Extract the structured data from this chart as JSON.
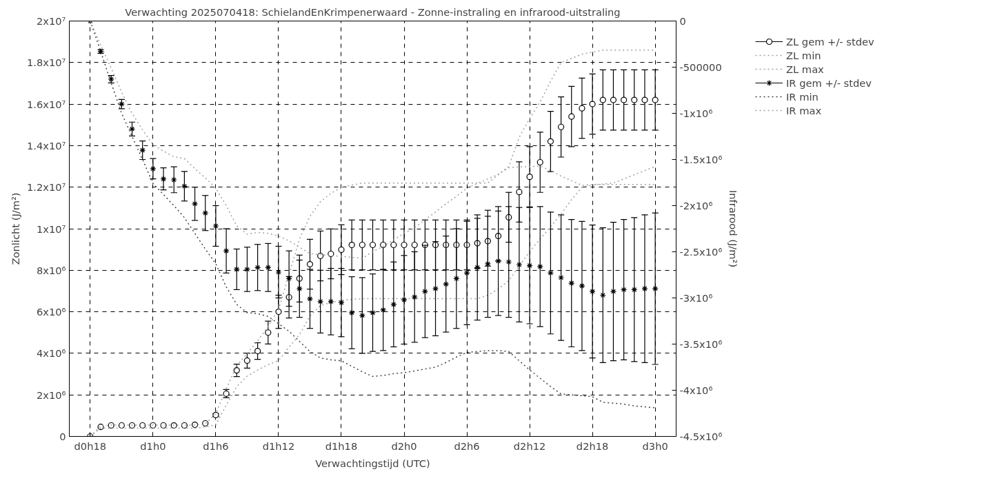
{
  "chart_data": {
    "type": "scatter",
    "title": "Verwachting 2025070418: SchielandEnKrimpenerwaard - Zonne-instraling en infrarood-uitstraling",
    "xlabel": "Verwachtingstijd (UTC)",
    "ylabel": "Zonlicht (J/m²)",
    "y2label": "Infrarood (J/m²)",
    "categories": [
      "d0h18",
      null,
      null,
      null,
      null,
      null,
      "d1h0",
      null,
      null,
      null,
      null,
      null,
      "d1h6",
      null,
      null,
      null,
      null,
      null,
      "d1h12",
      null,
      null,
      null,
      null,
      null,
      "d1h18",
      null,
      null,
      null,
      null,
      null,
      "d2h0",
      null,
      null,
      null,
      null,
      null,
      "d2h6",
      null,
      null,
      null,
      null,
      null,
      "d2h12",
      null,
      null,
      null,
      null,
      null,
      "d2h18",
      null,
      null,
      null,
      null,
      null,
      "d3h0"
    ],
    "ylim": [
      0,
      20000000
    ],
    "yticks": [
      {
        "value": 0,
        "label": "0"
      },
      {
        "value": 2000000,
        "label": "2x10⁶"
      },
      {
        "value": 4000000,
        "label": "4x10⁶"
      },
      {
        "value": 6000000,
        "label": "6x10⁶"
      },
      {
        "value": 8000000,
        "label": "8x10⁶"
      },
      {
        "value": 10000000,
        "label": "1x10⁷"
      },
      {
        "value": 12000000,
        "label": "1.2x10⁷"
      },
      {
        "value": 14000000,
        "label": "1.4x10⁷"
      },
      {
        "value": 16000000,
        "label": "1.6x10⁷"
      },
      {
        "value": 18000000,
        "label": "1.8x10⁷"
      },
      {
        "value": 20000000,
        "label": "2x10⁷"
      }
    ],
    "y2lim": [
      -4500000,
      0
    ],
    "y2ticks": [
      {
        "value": 0,
        "label": "0"
      },
      {
        "value": -500000,
        "label": "-500000"
      },
      {
        "value": -1000000,
        "label": "-1x10⁶"
      },
      {
        "value": -1500000,
        "label": "-1.5x10⁶"
      },
      {
        "value": -2000000,
        "label": "-2x10⁶"
      },
      {
        "value": -2500000,
        "label": "-2.5x10⁶"
      },
      {
        "value": -3000000,
        "label": "-3x10⁶"
      },
      {
        "value": -3500000,
        "label": "-3.5x10⁶"
      },
      {
        "value": -4000000,
        "label": "-4x10⁶"
      },
      {
        "value": -4500000,
        "label": "-4.5x10⁶"
      }
    ],
    "grid": true,
    "legend": "top right",
    "series": [
      {
        "name": "ZL gem +/- stdev",
        "marker": "circle",
        "color": "#000000",
        "values": [
          0,
          460000,
          530000,
          530000,
          530000,
          530000,
          530000,
          530000,
          530000,
          530000,
          560000,
          630000,
          1030000,
          2060000,
          3180000,
          3650000,
          4110000,
          5000000,
          6000000,
          6700000,
          7600000,
          8290000,
          8690000,
          8790000,
          8990000,
          9220000,
          9220000,
          9220000,
          9220000,
          9220000,
          9220000,
          9220000,
          9220000,
          9220000,
          9220000,
          9220000,
          9220000,
          9300000,
          9400000,
          9650000,
          10550000,
          11770000,
          12500000,
          13200000,
          14200000,
          14900000,
          15400000,
          15800000,
          16000000,
          16200000,
          16200000,
          16200000,
          16200000,
          16200000,
          16200000
        ],
        "errors": [
          null,
          null,
          null,
          null,
          null,
          null,
          null,
          null,
          null,
          null,
          null,
          null,
          70000,
          200000,
          300000,
          360000,
          400000,
          550000,
          800000,
          1000000,
          1130000,
          1200000,
          1200000,
          1200000,
          1200000,
          1200000,
          1200000,
          1200000,
          1200000,
          1200000,
          1200000,
          1200000,
          1200000,
          1200000,
          1200000,
          1200000,
          1200000,
          1200000,
          1200000,
          1200000,
          1200000,
          1450000,
          1450000,
          1450000,
          1450000,
          1450000,
          1450000,
          1450000,
          1450000,
          1450000,
          1450000,
          1450000,
          1450000,
          1450000,
          1450000
        ]
      },
      {
        "name": "ZL min",
        "type": "line",
        "line_style": "dotted",
        "color": "#a0a0a0",
        "values": [
          0,
          400000,
          400000,
          400000,
          400000,
          400000,
          400000,
          400000,
          400000,
          400000,
          400000,
          450000,
          560000,
          1500000,
          2400000,
          2900000,
          3200000,
          3450000,
          3650000,
          4300000,
          4900000,
          5800000,
          6300000,
          6450000,
          6550000,
          6600000,
          6630000,
          6630000,
          6630000,
          6630000,
          6630000,
          6630000,
          6630000,
          6630000,
          6630000,
          6630000,
          6630000,
          6630000,
          6800000,
          7100000,
          7500000,
          8200000,
          8900000,
          9500000,
          10100000,
          10700000,
          11400000,
          12000000,
          12100000,
          12150000,
          12200000,
          12400000,
          12600000,
          12800000,
          13000000
        ]
      },
      {
        "name": "ZL max",
        "type": "line",
        "line_style": "dotted",
        "color": "#a0a0a0",
        "values": [
          0,
          500000,
          550000,
          550000,
          550000,
          550000,
          550000,
          550000,
          550000,
          550000,
          550000,
          600000,
          1100000,
          2300000,
          3400000,
          4000000,
          4600000,
          5300000,
          6100000,
          7800000,
          9500000,
          10600000,
          11300000,
          11700000,
          12000000,
          12100000,
          12200000,
          12200000,
          12200000,
          12200000,
          12200000,
          12200000,
          12200000,
          12200000,
          12200000,
          12200000,
          12200000,
          12200000,
          12200000,
          12600000,
          13000000,
          14400000,
          15300000,
          16100000,
          17100000,
          18000000,
          18200000,
          18400000,
          18500000,
          18600000,
          18600000,
          18600000,
          18600000,
          18600000,
          18600000
        ]
      },
      {
        "name": "IR gem +/- stdev",
        "marker": "cross",
        "axis": "y2",
        "color": "#000000",
        "values": [
          0,
          -330000,
          -630000,
          -900000,
          -1170000,
          -1400000,
          -1600000,
          -1710000,
          -1720000,
          -1790000,
          -1980000,
          -2080000,
          -2220000,
          -2490000,
          -2690000,
          -2690000,
          -2670000,
          -2670000,
          -2720000,
          -2790000,
          -2900000,
          -3010000,
          -3040000,
          -3040000,
          -3050000,
          -3160000,
          -3190000,
          -3160000,
          -3130000,
          -3070000,
          -3020000,
          -2990000,
          -2930000,
          -2900000,
          -2850000,
          -2790000,
          -2730000,
          -2670000,
          -2630000,
          -2600000,
          -2610000,
          -2640000,
          -2650000,
          -2660000,
          -2730000,
          -2780000,
          -2840000,
          -2870000,
          -2930000,
          -2970000,
          -2930000,
          -2910000,
          -2910000,
          -2900000,
          -2900000
        ],
        "errors": [
          null,
          20000,
          40000,
          50000,
          75000,
          100000,
          110000,
          120000,
          140000,
          160000,
          180000,
          190000,
          220000,
          240000,
          220000,
          240000,
          250000,
          260000,
          280000,
          300000,
          310000,
          320000,
          340000,
          360000,
          370000,
          390000,
          410000,
          420000,
          440000,
          460000,
          480000,
          490000,
          500000,
          510000,
          520000,
          540000,
          560000,
          570000,
          580000,
          590000,
          600000,
          620000,
          630000,
          650000,
          660000,
          680000,
          690000,
          700000,
          720000,
          730000,
          750000,
          760000,
          780000,
          800000,
          820000
        ]
      },
      {
        "name": "IR min",
        "type": "line",
        "line_style": "dotted",
        "axis": "y2",
        "color": "#404040",
        "values": [
          0,
          -330000,
          -670000,
          -1000000,
          -1250000,
          -1500000,
          -1760000,
          -1880000,
          -2000000,
          -2130000,
          -2300000,
          -2470000,
          -2630000,
          -2880000,
          -3070000,
          -3160000,
          -3170000,
          -3200000,
          -3280000,
          -3360000,
          -3470000,
          -3580000,
          -3650000,
          -3670000,
          -3680000,
          -3740000,
          -3800000,
          -3850000,
          -3840000,
          -3820000,
          -3810000,
          -3790000,
          -3770000,
          -3750000,
          -3700000,
          -3640000,
          -3590000,
          -3580000,
          -3570000,
          -3570000,
          -3580000,
          -3680000,
          -3780000,
          -3870000,
          -3960000,
          -4040000,
          -4050000,
          -4060000,
          -4070000,
          -4130000,
          -4140000,
          -4150000,
          -4170000,
          -4180000,
          -4190000
        ]
      },
      {
        "name": "IR max",
        "type": "line",
        "line_style": "dotted",
        "axis": "y2",
        "color": "#a0a0a0",
        "values": [
          0,
          -260000,
          -510000,
          -770000,
          -1000000,
          -1180000,
          -1340000,
          -1410000,
          -1470000,
          -1490000,
          -1600000,
          -1700000,
          -1810000,
          -2000000,
          -2220000,
          -2310000,
          -2290000,
          -2300000,
          -2330000,
          -2380000,
          -2450000,
          -2520000,
          -2530000,
          -2540000,
          -2550000,
          -2560000,
          -2570000,
          -2500000,
          -2440000,
          -2370000,
          -2300000,
          -2240000,
          -2150000,
          -2070000,
          -1980000,
          -1900000,
          -1810000,
          -1760000,
          -1710000,
          -1660000,
          -1590000,
          -1580000,
          -1580000,
          -1570000,
          -1620000,
          -1680000,
          -1730000,
          -1780000,
          -1770000,
          -1770000,
          -1770000,
          -1770000,
          -1770000,
          -1770000,
          -1770000
        ]
      }
    ]
  }
}
